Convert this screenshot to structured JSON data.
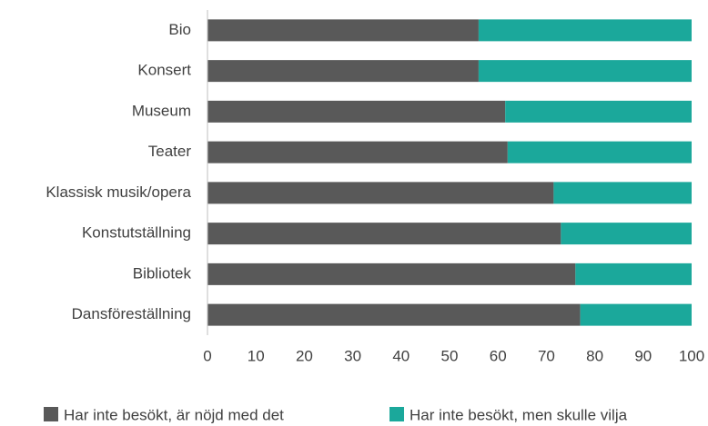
{
  "chart_data": {
    "type": "bar",
    "orientation": "horizontal",
    "stacked": true,
    "categories": [
      "Bio",
      "Konsert",
      "Museum",
      "Teater",
      "Klassisk musik/opera",
      "Konstutställning",
      "Bibliotek",
      "Dansföreställning"
    ],
    "series": [
      {
        "name": "Har inte besökt, är nöjd med det",
        "color": "#595959",
        "values": [
          56,
          56,
          61.5,
          62,
          71.5,
          73,
          76,
          77
        ]
      },
      {
        "name": "Har inte besökt, men skulle vilja",
        "color": "#1ba89b",
        "values": [
          44,
          44,
          38.5,
          38,
          28.5,
          27,
          24,
          23
        ]
      }
    ],
    "xlim": [
      0,
      100
    ],
    "xticks": [
      0,
      10,
      20,
      30,
      40,
      50,
      60,
      70,
      80,
      90,
      100
    ],
    "grid": false,
    "legend": "bottom"
  }
}
